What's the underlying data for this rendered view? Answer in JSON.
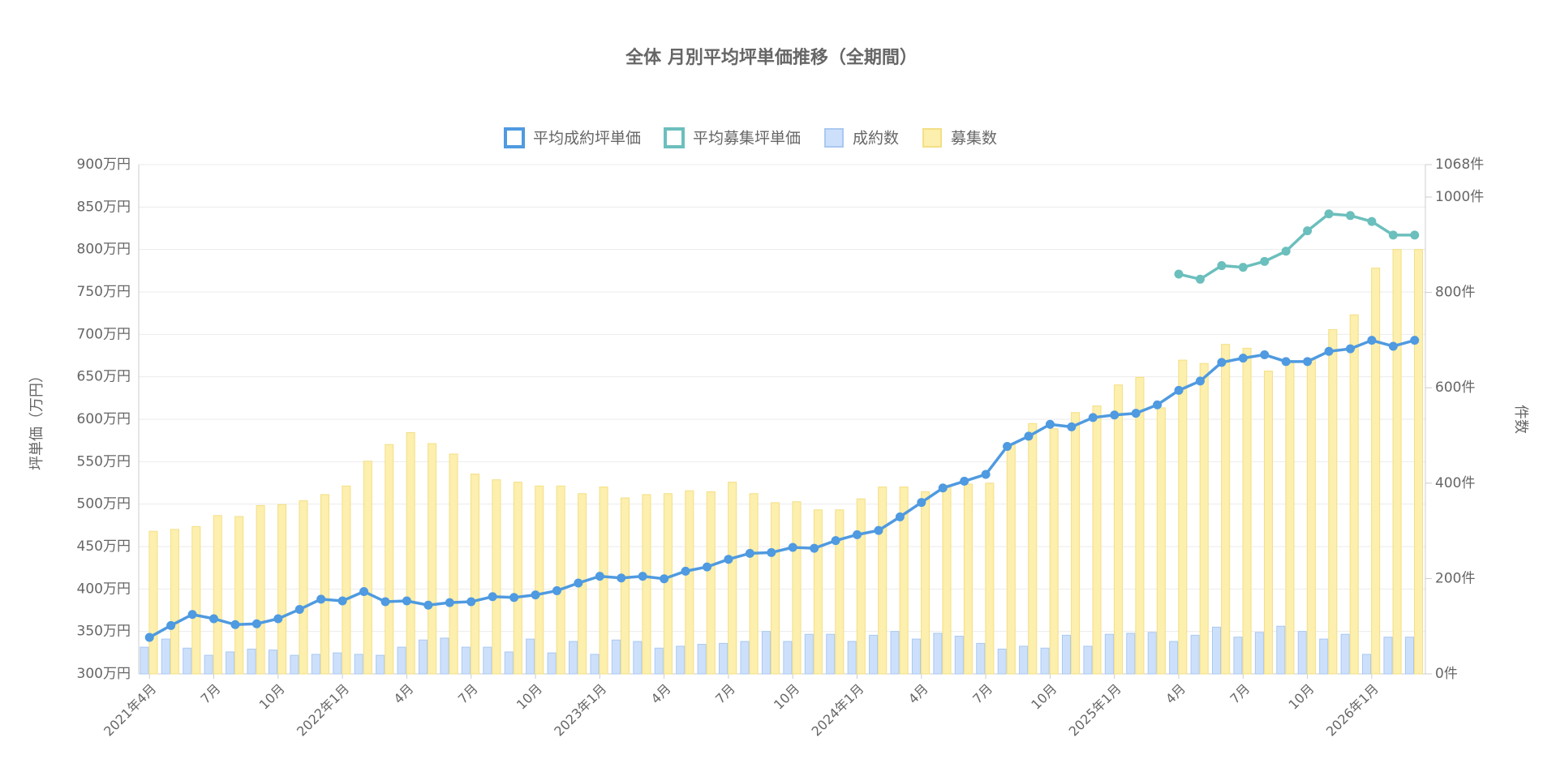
{
  "chart_data": {
    "type": "bar",
    "title": "全体 月別平均坪単価推移（全期間）",
    "ylabel": "坪単価（万円）",
    "y2label": "件数",
    "legend": "top",
    "grid": true,
    "categories": [
      "2021年4月",
      null,
      null,
      "7月",
      null,
      null,
      "10月",
      null,
      null,
      "2022年1月",
      null,
      null,
      "4月",
      null,
      null,
      "7月",
      null,
      null,
      "10月",
      null,
      null,
      "2023年1月",
      null,
      null,
      "4月",
      null,
      null,
      "7月",
      null,
      null,
      "10月",
      null,
      null,
      "2024年1月",
      null,
      null,
      "4月",
      null,
      null,
      "7月",
      null,
      null,
      "10月",
      null,
      null,
      "2025年1月",
      null,
      null,
      "4月",
      null,
      null,
      "7月",
      null,
      null,
      "10月",
      null,
      null,
      "2026年1月",
      null,
      null
    ],
    "ylim": [
      300,
      900
    ],
    "yticks": [
      {
        "value": 300,
        "label": "300万円"
      },
      {
        "value": 350,
        "label": "350万円"
      },
      {
        "value": 400,
        "label": "400万円"
      },
      {
        "value": 450,
        "label": "450万円"
      },
      {
        "value": 500,
        "label": "500万円"
      },
      {
        "value": 550,
        "label": "550万円"
      },
      {
        "value": 600,
        "label": "600万円"
      },
      {
        "value": 650,
        "label": "650万円"
      },
      {
        "value": 700,
        "label": "700万円"
      },
      {
        "value": 750,
        "label": "750万円"
      },
      {
        "value": 800,
        "label": "800万円"
      },
      {
        "value": 850,
        "label": "850万円"
      },
      {
        "value": 900,
        "label": "900万円"
      }
    ],
    "y2lim": [
      0,
      1068
    ],
    "y2ticks": [
      {
        "value": 0,
        "label": "0件"
      },
      {
        "value": 200,
        "label": "200件"
      },
      {
        "value": 400,
        "label": "400件"
      },
      {
        "value": 600,
        "label": "600件"
      },
      {
        "value": 800,
        "label": "800件"
      },
      {
        "value": 1000,
        "label": "1000件"
      },
      {
        "value": 1068,
        "label": "1068件"
      }
    ],
    "series": [
      {
        "name": "平均成約坪単価",
        "type": "line",
        "color": "#4f9ae0",
        "values": [
          343,
          357,
          370,
          365,
          358,
          359,
          365,
          376,
          388,
          386,
          397,
          385,
          386,
          381,
          384,
          385,
          391,
          390,
          393,
          398,
          407,
          415,
          413,
          415,
          412,
          421,
          426,
          435,
          442,
          443,
          449,
          448,
          457,
          464,
          469,
          485,
          502,
          519,
          527,
          535,
          568,
          580,
          594,
          591,
          602,
          605,
          607,
          617,
          634,
          645,
          667,
          672,
          676,
          668,
          668,
          680,
          683,
          693,
          686,
          693
        ]
      },
      {
        "name": "平均募集坪単価",
        "type": "line",
        "color": "#6bbfbd",
        "values": [
          null,
          null,
          null,
          null,
          null,
          null,
          null,
          null,
          null,
          null,
          null,
          null,
          null,
          null,
          null,
          null,
          null,
          null,
          null,
          null,
          null,
          null,
          null,
          null,
          null,
          null,
          null,
          null,
          null,
          null,
          null,
          null,
          null,
          null,
          null,
          null,
          null,
          null,
          null,
          null,
          null,
          null,
          null,
          null,
          null,
          null,
          null,
          null,
          771,
          765,
          781,
          779,
          786,
          798,
          822,
          842,
          840,
          833,
          817,
          817
        ]
      },
      {
        "name": "成約数",
        "type": "bar",
        "axis": "y2",
        "color": "#cde0fb",
        "border": "#a9c8f1",
        "values": [
          56,
          73,
          54,
          39,
          46,
          52,
          50,
          39,
          41,
          44,
          41,
          39,
          56,
          71,
          75,
          56,
          56,
          46,
          73,
          44,
          68,
          41,
          71,
          68,
          54,
          58,
          62,
          64,
          68,
          89,
          68,
          83,
          83,
          68,
          81,
          89,
          73,
          85,
          79,
          64,
          52,
          58,
          54,
          81,
          58,
          83,
          85,
          87,
          68,
          81,
          98,
          77,
          87,
          100,
          89,
          73,
          83,
          41,
          77,
          77
        ]
      },
      {
        "name": "募集数",
        "type": "bar",
        "axis": "y2",
        "color": "#fdefad",
        "border": "#f3df86",
        "values": [
          299,
          303,
          309,
          332,
          330,
          353,
          355,
          363,
          376,
          394,
          446,
          481,
          506,
          483,
          461,
          419,
          407,
          402,
          394,
          394,
          378,
          392,
          369,
          376,
          378,
          384,
          382,
          402,
          378,
          359,
          361,
          344,
          344,
          367,
          392,
          392,
          382,
          396,
          398,
          400,
          481,
          525,
          514,
          548,
          562,
          606,
          622,
          558,
          658,
          651,
          691,
          683,
          635,
          656,
          662,
          722,
          753,
          851,
          890,
          890
        ]
      }
    ]
  }
}
